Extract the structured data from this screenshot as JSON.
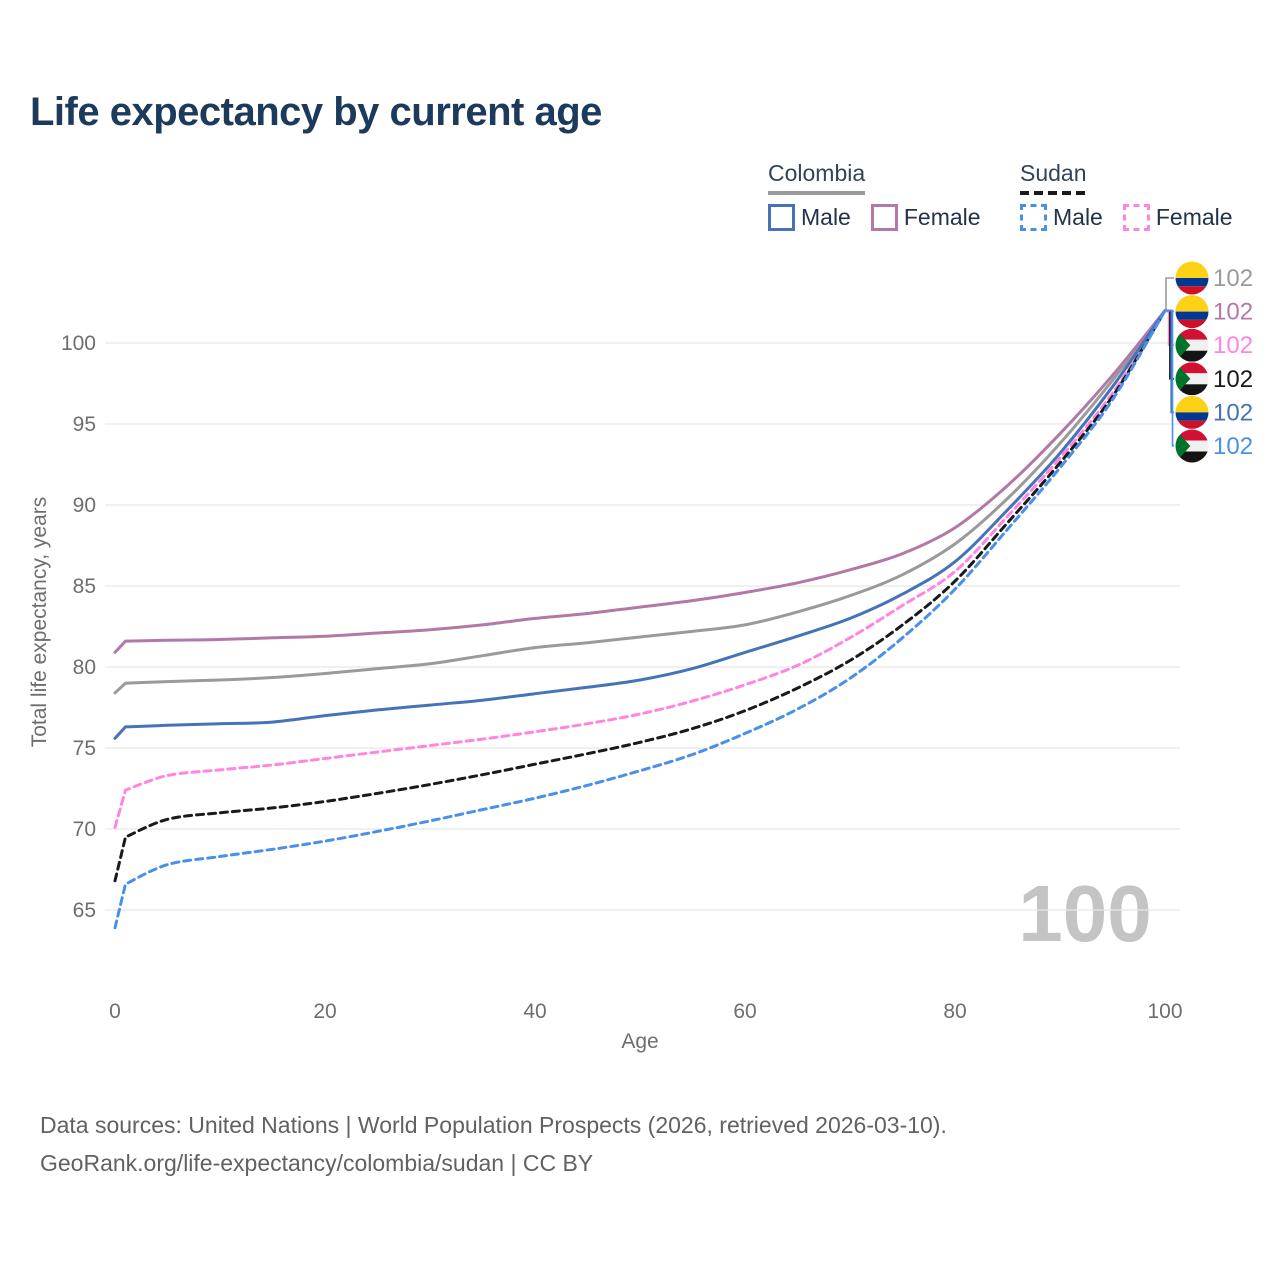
{
  "title": "Life expectancy by current age",
  "legend": {
    "groups": [
      {
        "label": "Colombia",
        "line_style": "solid",
        "underline_color": "#9a9a9a",
        "items": [
          {
            "label": "Male",
            "color": "#4673b8"
          },
          {
            "label": "Female",
            "color": "#b279a7"
          }
        ]
      },
      {
        "label": "Sudan",
        "line_style": "dashed",
        "underline_color": "#1a1a1a",
        "items": [
          {
            "label": "Male",
            "color": "#4a90e8"
          },
          {
            "label": "Female",
            "color": "#ff85e0"
          }
        ]
      }
    ]
  },
  "watermark": "100",
  "footer": {
    "line1": "Data sources: United Nations | World Population Prospects (2026, retrieved 2026-03-10).",
    "line2": "GeoRank.org/life-expectancy/colombia/sudan | CC BY"
  },
  "colors": {
    "title": "#1b3a5c",
    "axis_text": "#6e6e6e",
    "gridline": "#e8e8e8",
    "watermark": "#c4c4c4"
  },
  "chart_data": {
    "type": "line",
    "title": "Life expectancy by current age",
    "xlabel": "Age",
    "ylabel": "Total life expectancy, years",
    "x_ticks": [
      0,
      20,
      40,
      60,
      80,
      100
    ],
    "y_ticks": [
      65,
      70,
      75,
      80,
      85,
      90,
      95,
      100
    ],
    "xlim": [
      0,
      100
    ],
    "ylim": [
      62,
      104
    ],
    "grid": "horizontal",
    "x": [
      0,
      1,
      5,
      10,
      15,
      20,
      25,
      30,
      35,
      40,
      45,
      50,
      55,
      60,
      65,
      70,
      75,
      80,
      85,
      90,
      95,
      100
    ],
    "series": [
      {
        "name": "Colombia — Both sexes",
        "country": "Colombia",
        "sex": "both",
        "color": "#9a9a9a",
        "dashed": false,
        "flag": "colombia",
        "end_label": "102",
        "values": [
          78.4,
          79.0,
          79.1,
          79.2,
          79.35,
          79.6,
          79.9,
          80.2,
          80.7,
          81.2,
          81.5,
          81.85,
          82.2,
          82.6,
          83.4,
          84.4,
          85.7,
          87.6,
          90.4,
          93.8,
          97.7,
          102
        ]
      },
      {
        "name": "Colombia — Female",
        "country": "Colombia",
        "sex": "female",
        "color": "#b279a7",
        "dashed": false,
        "flag": "colombia",
        "end_label": "102",
        "values": [
          80.9,
          81.6,
          81.65,
          81.7,
          81.8,
          81.9,
          82.1,
          82.3,
          82.6,
          83.0,
          83.3,
          83.7,
          84.1,
          84.6,
          85.2,
          86.0,
          87.0,
          88.6,
          91.2,
          94.4,
          98.0,
          102
        ]
      },
      {
        "name": "Sudan — Female",
        "country": "Sudan",
        "sex": "female",
        "color": "#ff85e0",
        "dashed": true,
        "flag": "sudan",
        "end_label": "102",
        "values": [
          70.1,
          72.4,
          73.3,
          73.65,
          73.95,
          74.35,
          74.75,
          75.15,
          75.55,
          76.0,
          76.5,
          77.1,
          77.9,
          78.9,
          80.1,
          81.8,
          83.8,
          85.9,
          89.3,
          92.9,
          96.9,
          102
        ]
      },
      {
        "name": "Sudan — Both sexes",
        "country": "Sudan",
        "sex": "both",
        "color": "#1a1a1a",
        "dashed": true,
        "flag": "sudan",
        "end_label": "102",
        "values": [
          66.8,
          69.5,
          70.6,
          71.0,
          71.3,
          71.7,
          72.2,
          72.75,
          73.35,
          74.0,
          74.65,
          75.35,
          76.2,
          77.3,
          78.7,
          80.4,
          82.6,
          85.3,
          88.9,
          92.6,
          96.7,
          102
        ]
      },
      {
        "name": "Colombia — Male",
        "country": "Colombia",
        "sex": "male",
        "color": "#4673b8",
        "dashed": false,
        "flag": "colombia",
        "end_label": "102",
        "values": [
          75.6,
          76.3,
          76.4,
          76.5,
          76.6,
          77.0,
          77.35,
          77.65,
          77.95,
          78.35,
          78.75,
          79.2,
          79.9,
          80.9,
          81.9,
          83.0,
          84.5,
          86.5,
          89.7,
          93.2,
          97.3,
          102
        ]
      },
      {
        "name": "Sudan — Male",
        "country": "Sudan",
        "sex": "male",
        "color": "#4a90e8",
        "dashed": true,
        "flag": "sudan",
        "end_label": "102",
        "values": [
          63.9,
          66.6,
          67.8,
          68.3,
          68.75,
          69.25,
          69.85,
          70.5,
          71.2,
          71.9,
          72.7,
          73.6,
          74.6,
          75.9,
          77.4,
          79.3,
          81.8,
          84.8,
          88.5,
          92.3,
          96.5,
          102
        ]
      }
    ]
  }
}
